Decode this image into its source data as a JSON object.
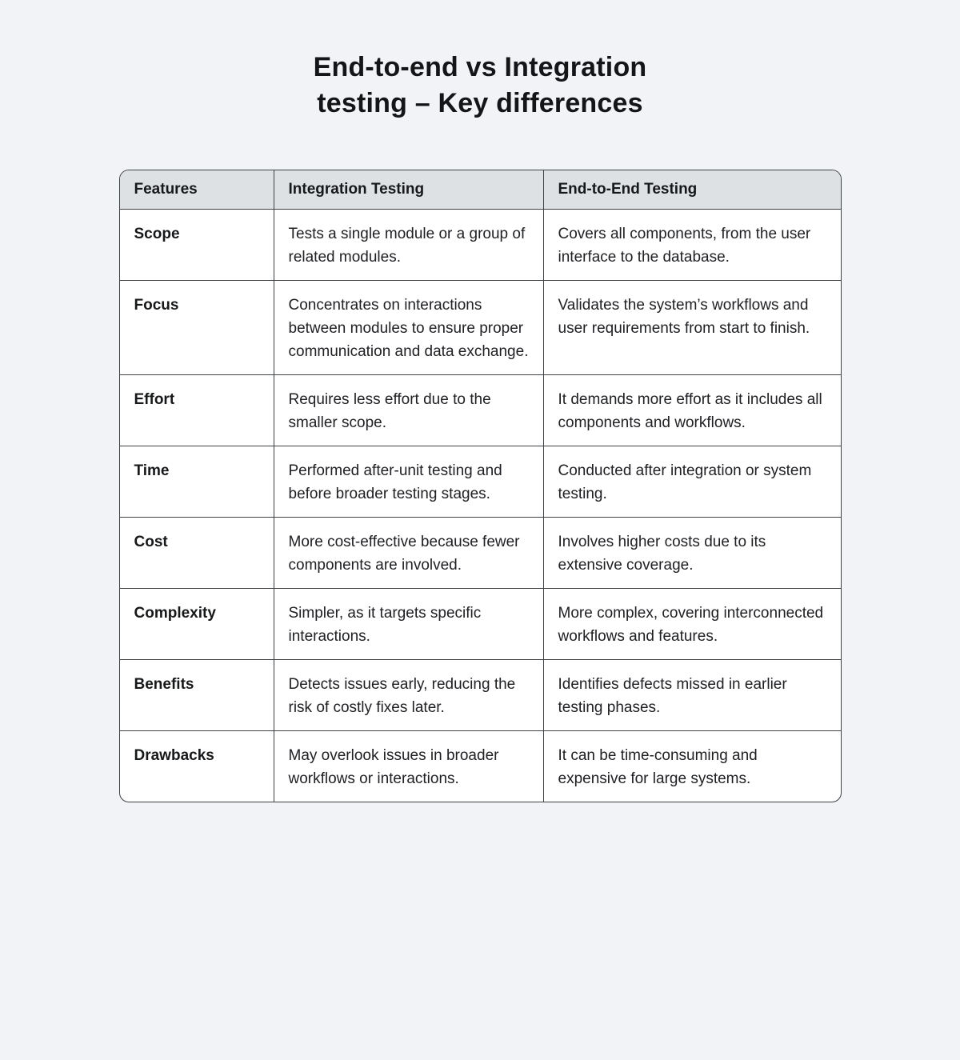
{
  "page": {
    "title_line1": "End-to-end vs Integration",
    "title_line2": "testing – Key differences",
    "background_color": "#f2f3f6"
  },
  "table": {
    "colors": {
      "header_bg": "#dee1e4",
      "body_bg": "#ffffff",
      "border": "#3f4245"
    },
    "headers": [
      "Features",
      "Integration Testing",
      "End-to-End Testing"
    ],
    "rows": [
      {
        "feature": "Scope",
        "integration": "Tests a single module or a group of related modules.",
        "e2e": "Covers all components, from the user interface to the database."
      },
      {
        "feature": "Focus",
        "integration": "Concentrates on interactions between modules to ensure proper communication and data exchange.",
        "e2e": "Validates the system’s workflows and user requirements from start to finish."
      },
      {
        "feature": "Effort",
        "integration": "Requires less effort due to the smaller scope.",
        "e2e": "It demands more effort as it includes all components and workflows."
      },
      {
        "feature": "Time",
        "integration": "Performed after-unit testing and before broader testing stages.",
        "e2e": "Conducted after integration or system testing."
      },
      {
        "feature": "Cost",
        "integration": "More cost-effective because fewer components are involved.",
        "e2e": "Involves higher costs due to its extensive coverage."
      },
      {
        "feature": "Complexity",
        "integration": "Simpler, as it targets specific interactions.",
        "e2e": "More complex, covering interconnected workflows and features."
      },
      {
        "feature": "Benefits",
        "integration": "Detects issues early, reducing the risk of costly fixes later.",
        "e2e": "Identifies defects missed in earlier testing phases."
      },
      {
        "feature": "Drawbacks",
        "integration": "May overlook issues in broader workflows or interactions.",
        "e2e": "It can be time-consuming and expensive for large systems."
      }
    ]
  }
}
